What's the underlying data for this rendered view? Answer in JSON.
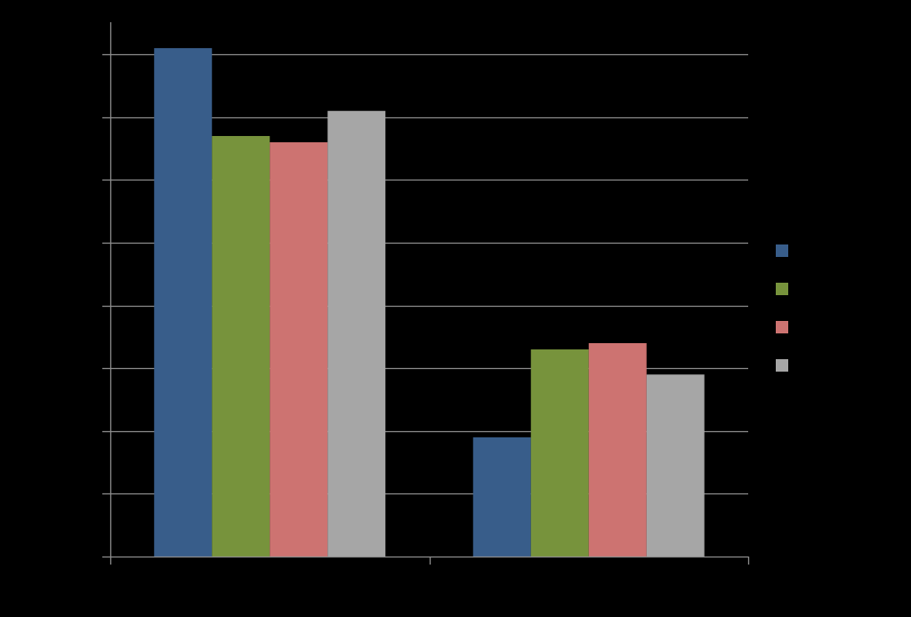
{
  "chart_data": {
    "type": "bar",
    "title": "",
    "xlabel": "",
    "ylabel": "",
    "categories": [
      "",
      ""
    ],
    "ylim": [
      0,
      8
    ],
    "y_tick_count": 9,
    "grid": true,
    "legend_position": "right",
    "background": "#000000",
    "gridline_color": "#8c8c8c",
    "axis_color": "#8c8c8c",
    "series": [
      {
        "color": "#385d8a",
        "values": [
          8.1,
          1.9
        ]
      },
      {
        "color": "#77933c",
        "values": [
          6.7,
          3.3
        ]
      },
      {
        "color": "#cd7371",
        "values": [
          6.6,
          3.4
        ]
      },
      {
        "color": "#a6a6a6",
        "values": [
          7.1,
          2.9
        ]
      }
    ]
  }
}
